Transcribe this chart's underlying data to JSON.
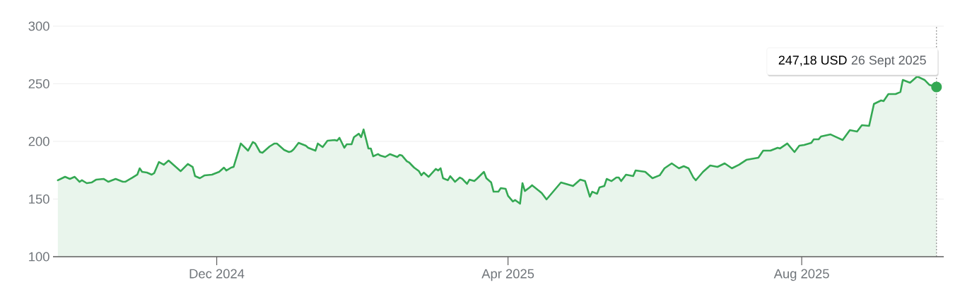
{
  "chart_data": {
    "type": "area",
    "color": "#34a853",
    "x": [
      "2024-09-26",
      "2024-09-29",
      "2024-10-01",
      "2024-10-03",
      "2024-10-05",
      "2024-10-06",
      "2024-10-08",
      "2024-10-10",
      "2024-10-12",
      "2024-10-15",
      "2024-10-17",
      "2024-10-20",
      "2024-10-23",
      "2024-10-24",
      "2024-10-27",
      "2024-10-29",
      "2024-10-30",
      "2024-10-31",
      "2024-11-02",
      "2024-11-04",
      "2024-11-05",
      "2024-11-07",
      "2024-11-09",
      "2024-11-11",
      "2024-11-16",
      "2024-11-19",
      "2024-11-21",
      "2024-11-22",
      "2024-11-24",
      "2024-11-26",
      "2024-11-29",
      "2024-12-02",
      "2024-12-04",
      "2024-12-05",
      "2024-12-07",
      "2024-12-08",
      "2024-12-11",
      "2024-12-14",
      "2024-12-16",
      "2024-12-17",
      "2024-12-19",
      "2024-12-20",
      "2024-12-23",
      "2024-12-25",
      "2024-12-26",
      "2024-12-28",
      "2024-12-29",
      "2024-12-31",
      "2025-01-01",
      "2025-01-02",
      "2025-01-04",
      "2025-01-07",
      "2025-01-08",
      "2025-01-11",
      "2025-01-12",
      "2025-01-14",
      "2025-01-16",
      "2025-01-19",
      "2025-01-20",
      "2025-01-21",
      "2025-01-23",
      "2025-01-24",
      "2025-01-26",
      "2025-01-27",
      "2025-01-29",
      "2025-01-30",
      "2025-01-31",
      "2025-02-02",
      "2025-02-03",
      "2025-02-04",
      "2025-02-06",
      "2025-02-07",
      "2025-02-09",
      "2025-02-11",
      "2025-02-14",
      "2025-02-15",
      "2025-02-16",
      "2025-02-18",
      "2025-02-19",
      "2025-02-21",
      "2025-02-23",
      "2025-02-24",
      "2025-02-25",
      "2025-02-27",
      "2025-03-02",
      "2025-03-03",
      "2025-03-04",
      "2025-03-05",
      "2025-03-07",
      "2025-03-08",
      "2025-03-10",
      "2025-03-12",
      "2025-03-13",
      "2025-03-15",
      "2025-03-16",
      "2025-03-18",
      "2025-03-19",
      "2025-03-22",
      "2025-03-23",
      "2025-03-25",
      "2025-03-26",
      "2025-03-28",
      "2025-03-29",
      "2025-03-31",
      "2025-04-01",
      "2025-04-03",
      "2025-04-04",
      "2025-04-06",
      "2025-04-07",
      "2025-04-08",
      "2025-04-10",
      "2025-04-11",
      "2025-04-15",
      "2025-04-17",
      "2025-04-23",
      "2025-04-28",
      "2025-05-01",
      "2025-05-03",
      "2025-05-05",
      "2025-05-06",
      "2025-05-08",
      "2025-05-09",
      "2025-05-11",
      "2025-05-12",
      "2025-05-14",
      "2025-05-16",
      "2025-05-17",
      "2025-05-18",
      "2025-05-20",
      "2025-05-23",
      "2025-05-24",
      "2025-05-28",
      "2025-05-31",
      "2025-06-03",
      "2025-06-05",
      "2025-06-08",
      "2025-06-11",
      "2025-06-13",
      "2025-06-15",
      "2025-06-17",
      "2025-06-18",
      "2025-06-19",
      "2025-06-21",
      "2025-06-24",
      "2025-06-27",
      "2025-06-30",
      "2025-07-03",
      "2025-07-06",
      "2025-07-09",
      "2025-07-14",
      "2025-07-16",
      "2025-07-19",
      "2025-07-22",
      "2025-07-23",
      "2025-07-26",
      "2025-07-29",
      "2025-07-31",
      "2025-08-02",
      "2025-08-05",
      "2025-08-06",
      "2025-08-08",
      "2025-08-09",
      "2025-08-13",
      "2025-08-16",
      "2025-08-18",
      "2025-08-21",
      "2025-08-24",
      "2025-08-26",
      "2025-08-29",
      "2025-08-31",
      "2025-09-03",
      "2025-09-04",
      "2025-09-06",
      "2025-09-09",
      "2025-09-11",
      "2025-09-12",
      "2025-09-15",
      "2025-09-18",
      "2025-09-21",
      "2025-09-23",
      "2025-09-26"
    ],
    "values": [
      166.3,
      169.3,
      167.5,
      169.3,
      165.0,
      166.3,
      163.8,
      164.4,
      166.9,
      167.5,
      165.0,
      167.5,
      165.0,
      165.0,
      168.7,
      171.2,
      176.7,
      173.6,
      173.0,
      171.2,
      172.4,
      182.2,
      179.8,
      183.4,
      174.2,
      180.4,
      177.9,
      169.9,
      168.1,
      170.6,
      171.2,
      173.6,
      177.3,
      174.8,
      177.3,
      177.9,
      198.2,
      192.0,
      199.4,
      198.2,
      190.8,
      190.2,
      195.7,
      198.2,
      198.2,
      194.5,
      192.6,
      190.8,
      191.4,
      193.3,
      198.8,
      196.3,
      194.5,
      192.0,
      198.2,
      195.1,
      200.6,
      201.2,
      200.6,
      203.1,
      194.5,
      197.5,
      197.5,
      203.7,
      206.7,
      203.7,
      210.4,
      193.9,
      193.9,
      187.1,
      189.0,
      187.7,
      186.5,
      189.0,
      186.5,
      188.3,
      187.7,
      182.8,
      181.6,
      177.3,
      174.2,
      170.6,
      173.0,
      169.3,
      176.1,
      174.8,
      176.7,
      168.1,
      166.3,
      169.9,
      165.0,
      168.7,
      167.5,
      163.2,
      166.9,
      165.6,
      167.5,
      173.6,
      168.1,
      164.4,
      156.4,
      156.4,
      159.5,
      158.9,
      152.8,
      147.9,
      149.1,
      146.0,
      163.8,
      157.0,
      160.1,
      162.0,
      155.2,
      149.7,
      164.4,
      161.3,
      166.9,
      165.6,
      152.1,
      156.4,
      154.6,
      160.1,
      161.3,
      167.5,
      165.6,
      168.7,
      168.7,
      165.6,
      171.2,
      169.9,
      174.8,
      173.6,
      168.1,
      170.6,
      176.7,
      181.0,
      176.7,
      178.5,
      176.7,
      168.7,
      166.3,
      168.7,
      173.6,
      179.1,
      177.9,
      181.0,
      176.7,
      179.8,
      184.0,
      185.9,
      192.0,
      192.0,
      194.5,
      193.9,
      198.2,
      190.8,
      196.3,
      196.9,
      198.8,
      201.8,
      201.8,
      204.3,
      206.1,
      203.1,
      201.2,
      209.8,
      208.6,
      214.1,
      213.5,
      232.5,
      235.6,
      235.0,
      241.1,
      241.1,
      242.9,
      253.4,
      250.9,
      256.4,
      253.4,
      249.1,
      247.18
    ],
    "xlim": [
      "2024-09-24",
      "2025-09-29"
    ],
    "xticks": [
      {
        "value": "2024-12-01",
        "label": "Dec 2024"
      },
      {
        "value": "2025-04-01",
        "label": "Apr 2025"
      },
      {
        "value": "2025-08-01",
        "label": "Aug 2025"
      }
    ],
    "ylim": [
      100,
      300
    ],
    "yticks": [
      100,
      150,
      200,
      250,
      300
    ],
    "grid": "y",
    "ref_lines": [
      {
        "axis": "x",
        "value": "2025-09-26",
        "color": "#757575",
        "line_style": "dotted"
      }
    ],
    "annotations": [
      "247,18 USD",
      "26 Sept 2025"
    ]
  }
}
